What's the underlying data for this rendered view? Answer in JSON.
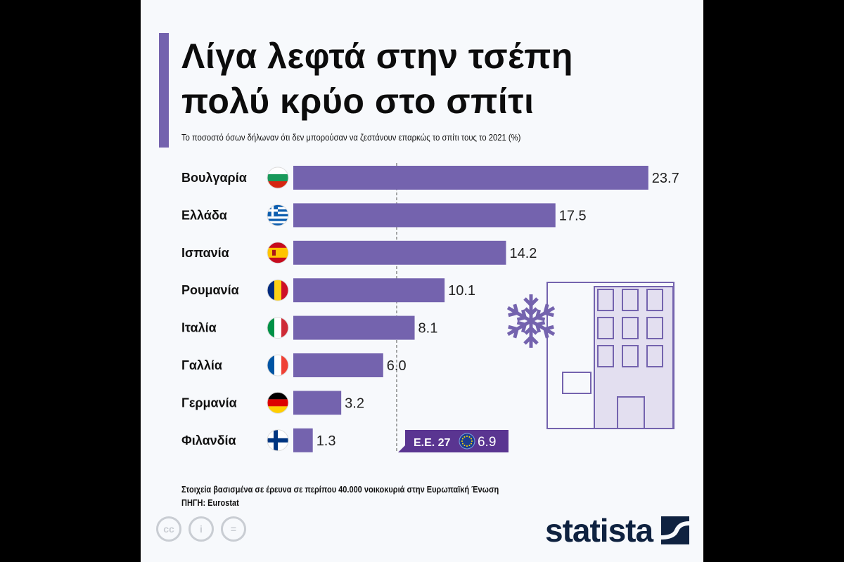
{
  "title_lines": [
    "Λίγα λεφτά στην τσέπη",
    "πολύ κρύο στο σπίτι"
  ],
  "subtitle": "Το ποσοστό όσων δήλωναν ότι δεν μπορούσαν να ζεστάνουν επαρκώς το σπίτι τους το 2021 (%)",
  "chart_data": {
    "type": "bar",
    "orientation": "horizontal",
    "categories": [
      "Βουλγαρία",
      "Ελλάδα",
      "Ισπανία",
      "Ρουμανία",
      "Ιταλία",
      "Γαλλία",
      "Γερμανία",
      "Φιλανδία"
    ],
    "values": [
      23.7,
      17.5,
      14.2,
      10.1,
      8.1,
      6.0,
      3.2,
      1.3
    ],
    "flags": [
      "bulgaria-flag",
      "greece-flag",
      "spain-flag",
      "romania-flag",
      "italy-flag",
      "france-flag",
      "germany-flag",
      "finland-flag"
    ],
    "reference": {
      "label": "Ε.Ε. 27",
      "value": 6.9,
      "icon": "eu-flag"
    },
    "bar_color": "#7463ae",
    "reference_color": "#5a3591",
    "grid": false
  },
  "footer": {
    "note": "Στοιχεία βασισμένα σε έρευνα σε περίπου 40.000 νοικοκυριά στην Ευρωπαϊκή Ένωση",
    "source": "ΠΗΓΗ: Eurostat",
    "license_icons": [
      "cc-icon",
      "attribution-icon",
      "no-derivatives-icon"
    ],
    "logo": "statista"
  }
}
